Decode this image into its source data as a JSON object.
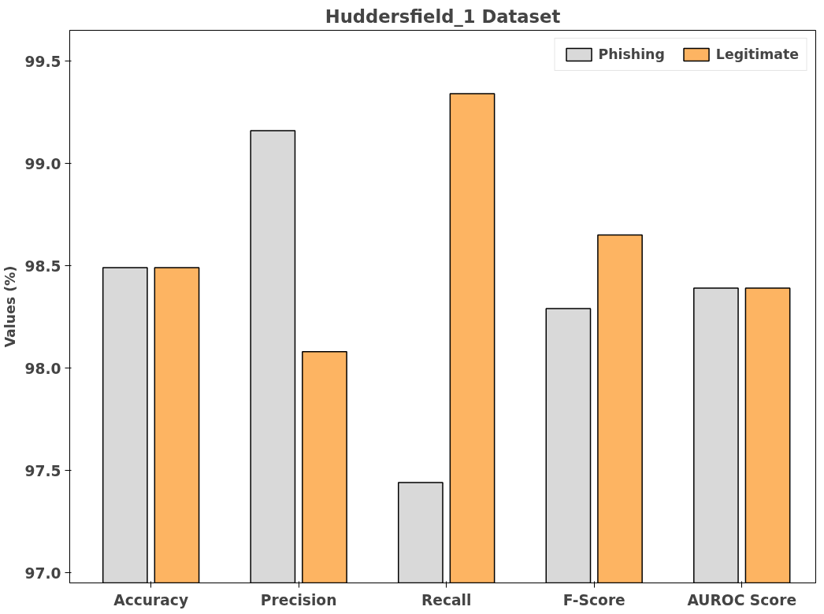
{
  "chart_data": {
    "type": "bar",
    "title": "Huddersfield_1 Dataset",
    "ylabel": "Values (%)",
    "categories": [
      "Accuracy",
      "Precision",
      "Recall",
      "F-Score",
      "AUROC Score"
    ],
    "series": [
      {
        "name": "Phishing",
        "color": "#d9d9d9",
        "values": [
          98.49,
          99.16,
          97.44,
          98.29,
          98.39
        ]
      },
      {
        "name": "Legitimate",
        "color": "#fdb462",
        "values": [
          98.49,
          98.08,
          99.34,
          98.65,
          98.39
        ]
      }
    ],
    "ylim": [
      96.95,
      99.65
    ],
    "yticks": [
      {
        "value": 97.0,
        "label": "97.0"
      },
      {
        "value": 97.5,
        "label": "97.5"
      },
      {
        "value": 98.0,
        "label": "98.0"
      },
      {
        "value": 98.5,
        "label": "98.5"
      },
      {
        "value": 99.0,
        "label": "99.0"
      },
      {
        "value": 99.5,
        "label": "99.5"
      }
    ],
    "grid": false,
    "legend": "top right"
  }
}
